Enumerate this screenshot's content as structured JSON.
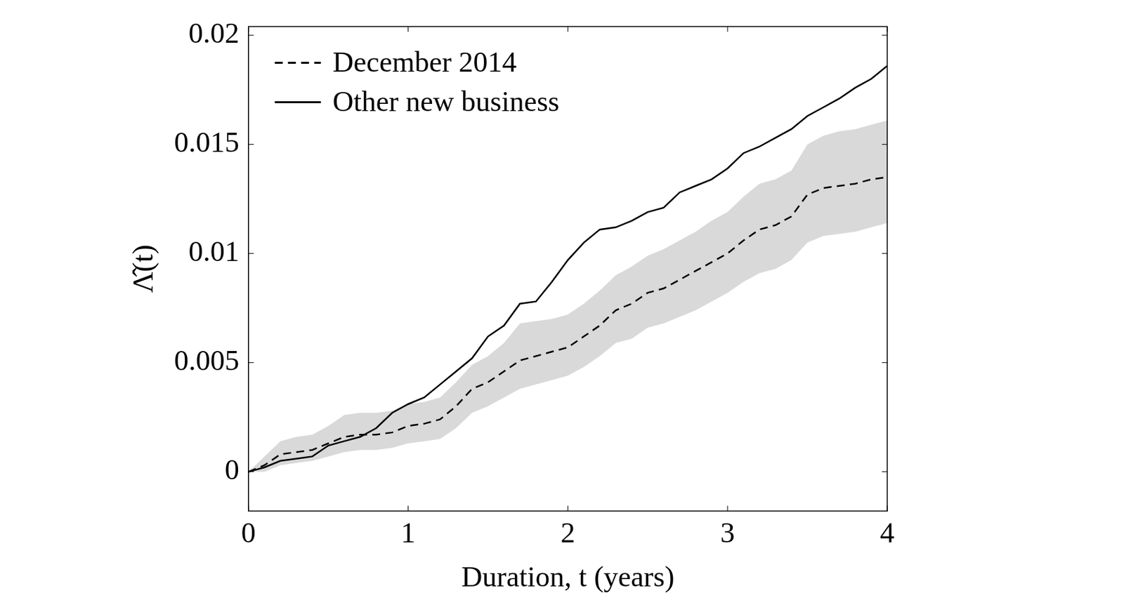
{
  "chart_data": {
    "type": "line",
    "x_label": "Duration, t (years)",
    "y_label": "Λ̂(t)",
    "x": [
      0,
      0.1,
      0.2,
      0.3,
      0.4,
      0.5,
      0.6,
      0.7,
      0.8,
      0.9,
      1.0,
      1.1,
      1.2,
      1.3,
      1.4,
      1.5,
      1.6,
      1.7,
      1.8,
      1.9,
      2.0,
      2.1,
      2.2,
      2.3,
      2.4,
      2.5,
      2.6,
      2.7,
      2.8,
      2.9,
      3.0,
      3.1,
      3.2,
      3.3,
      3.4,
      3.5,
      3.6,
      3.7,
      3.8,
      3.9,
      4.0
    ],
    "series": [
      {
        "name": "December 2014",
        "color": "#000000",
        "line_style": "dashed",
        "values": [
          0,
          0.0003,
          0.0008,
          0.0009,
          0.001,
          0.0013,
          0.0016,
          0.0017,
          0.0017,
          0.0018,
          0.0021,
          0.0022,
          0.0024,
          0.003,
          0.0038,
          0.0041,
          0.0046,
          0.0051,
          0.0053,
          0.0055,
          0.0057,
          0.0062,
          0.0067,
          0.0074,
          0.0077,
          0.0082,
          0.0084,
          0.0088,
          0.0092,
          0.0096,
          0.01,
          0.0106,
          0.0111,
          0.0113,
          0.0117,
          0.0127,
          0.013,
          0.0131,
          0.0132,
          0.0134,
          0.0135
        ],
        "lower": [
          0,
          0.0,
          0.0003,
          0.0004,
          0.0005,
          0.0007,
          0.0009,
          0.001,
          0.001,
          0.0011,
          0.0013,
          0.0014,
          0.0015,
          0.002,
          0.0027,
          0.003,
          0.0034,
          0.0038,
          0.004,
          0.0042,
          0.0044,
          0.0048,
          0.0053,
          0.0059,
          0.0061,
          0.0066,
          0.0068,
          0.0071,
          0.0074,
          0.0078,
          0.0082,
          0.0087,
          0.0091,
          0.0093,
          0.0097,
          0.0105,
          0.0108,
          0.0109,
          0.011,
          0.0112,
          0.0114
        ],
        "upper": [
          0,
          0.0007,
          0.0014,
          0.0016,
          0.0017,
          0.0021,
          0.0026,
          0.0027,
          0.0027,
          0.0028,
          0.0031,
          0.0032,
          0.0034,
          0.0041,
          0.0049,
          0.0053,
          0.0059,
          0.0068,
          0.0069,
          0.007,
          0.0072,
          0.0077,
          0.0083,
          0.009,
          0.0094,
          0.0099,
          0.0102,
          0.0106,
          0.011,
          0.0115,
          0.0119,
          0.0126,
          0.0132,
          0.0134,
          0.0138,
          0.015,
          0.0154,
          0.0156,
          0.0157,
          0.0159,
          0.0161
        ]
      },
      {
        "name": "Other new business",
        "color": "#000000",
        "line_style": "solid",
        "values": [
          0,
          0.0002,
          0.0005,
          0.0006,
          0.0007,
          0.0012,
          0.0014,
          0.0016,
          0.002,
          0.0027,
          0.0031,
          0.0034,
          0.004,
          0.0046,
          0.0052,
          0.0062,
          0.0067,
          0.0077,
          0.0078,
          0.0087,
          0.0097,
          0.0105,
          0.0111,
          0.0112,
          0.0115,
          0.0119,
          0.0121,
          0.0128,
          0.0131,
          0.0134,
          0.0139,
          0.0146,
          0.0149,
          0.0153,
          0.0157,
          0.0163,
          0.0167,
          0.0171,
          0.0176,
          0.018,
          0.0186
        ]
      }
    ],
    "xlim": [
      0,
      4
    ],
    "xticks": [
      0,
      1,
      2,
      3,
      4
    ],
    "ylim": [
      -0.0018,
      0.0204
    ],
    "yticks": [
      0,
      0.005,
      0.01,
      0.015,
      0.02
    ],
    "grid": false,
    "legend": "upper left"
  }
}
